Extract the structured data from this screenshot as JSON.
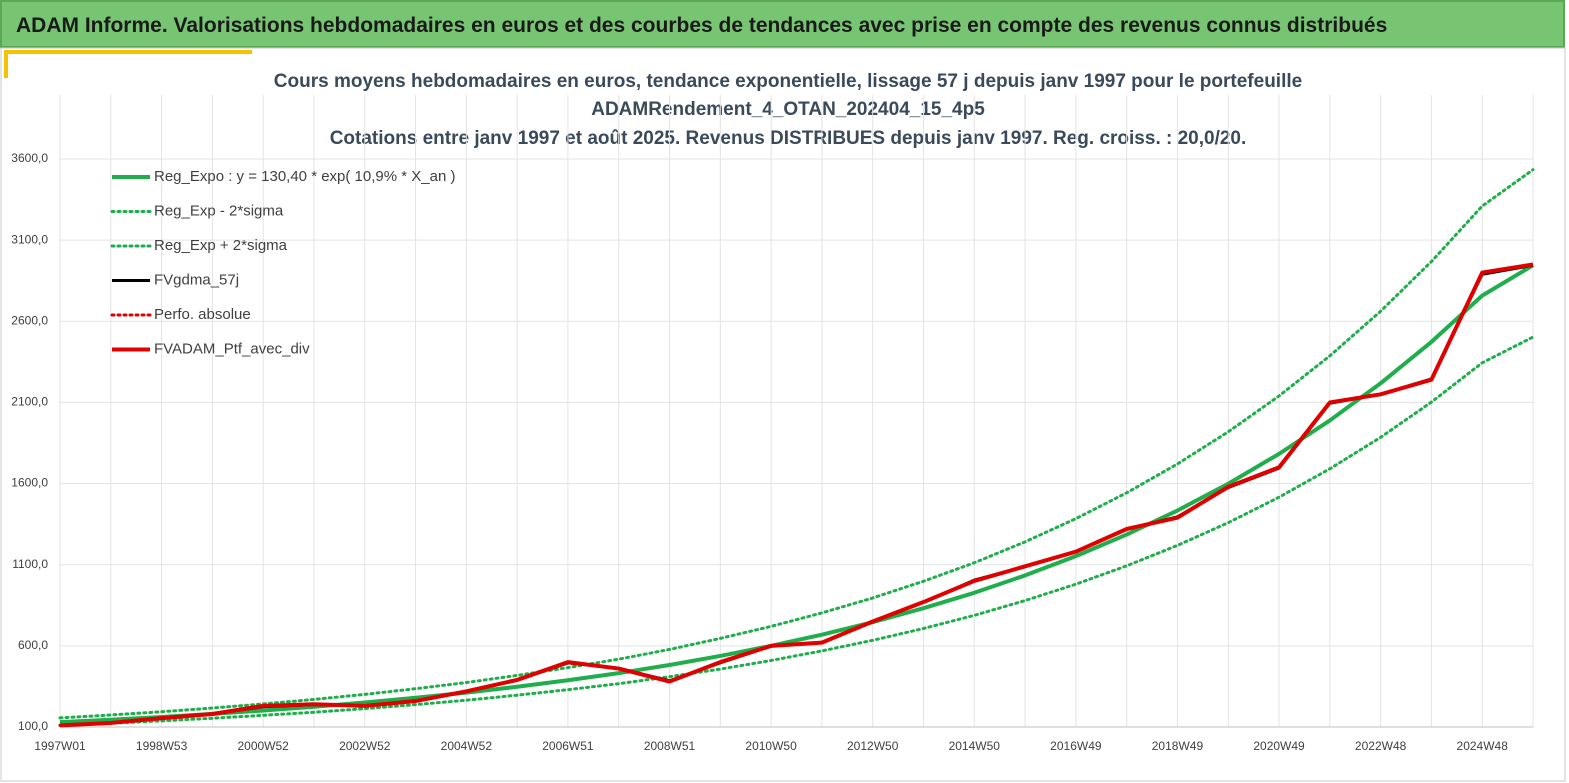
{
  "header": {
    "title": "ADAM Informe. Valorisations hebdomadaires en euros et des courbes de tendances avec prise en compte des revenus connus distribués"
  },
  "chart_data": {
    "type": "line",
    "title": "Cours moyens hebdomadaires  en euros, tendance exponentielle, lissage 57 j depuis janv 1997 pour le portefeuille",
    "subtitle": [
      "ADAMRendement_4_OTAN_202404_15_4p5",
      "Cotations  entre janv 1997 et août 2025. Revenus DISTRIBUES depuis janv 1997. Reg. croiss. : 20,0/20."
    ],
    "categories": [
      "1997W01",
      null,
      "1998W53",
      null,
      "2000W52",
      null,
      "2002W52",
      null,
      "2004W52",
      null,
      "2006W51",
      null,
      "2008W51",
      null,
      "2010W50",
      null,
      "2012W50",
      null,
      "2014W50",
      null,
      "2016W49",
      null,
      "2018W49",
      null,
      "2020W49",
      null,
      "2022W48",
      null,
      "2024W48",
      null
    ],
    "ylim": [
      100,
      3600
    ],
    "yticks": [
      {
        "value": 100,
        "label": "100,0"
      },
      {
        "value": 600,
        "label": "600,0"
      },
      {
        "value": 1100,
        "label": "1100,0"
      },
      {
        "value": 1600,
        "label": "1600,0"
      },
      {
        "value": 2100,
        "label": "2100,0"
      },
      {
        "value": 2600,
        "label": "2600,0"
      },
      {
        "value": 3100,
        "label": "3100,0"
      },
      {
        "value": 3600,
        "label": "3600,0"
      }
    ],
    "grid": true,
    "series": [
      {
        "name": "Reg_Expo : y = 130,40 * exp( 10,9% *  X_an )",
        "color": "#1fae4b",
        "style": "solid",
        "values": [
          130,
          145,
          162,
          181,
          202,
          225,
          251,
          280,
          312,
          348,
          388,
          432,
          482,
          538,
          600,
          669,
          746,
          832,
          927,
          1034,
          1153,
          1286,
          1434,
          1599,
          1783,
          1989,
          2218,
          2473,
          2758,
          2945
        ]
      },
      {
        "name": "Reg_Exp - 2*sigma",
        "color": "#1fae4b",
        "style": "dotted",
        "values": [
          111,
          123,
          138,
          154,
          172,
          191,
          213,
          238,
          265,
          296,
          330,
          367,
          410,
          457,
          510,
          569,
          634,
          707,
          788,
          879,
          980,
          1093,
          1219,
          1359,
          1516,
          1691,
          1885,
          2102,
          2344,
          2503
        ]
      },
      {
        "name": "Reg_Exp + 2*sigma",
        "color": "#1fae4b",
        "style": "dotted",
        "values": [
          156,
          174,
          194,
          217,
          242,
          270,
          301,
          336,
          374,
          418,
          466,
          518,
          578,
          646,
          720,
          803,
          895,
          998,
          1112,
          1241,
          1384,
          1543,
          1721,
          1919,
          2140,
          2387,
          2662,
          2968,
          3310,
          3534
        ]
      },
      {
        "name": "FVgdma_57j",
        "color": "#000000",
        "style": "solid",
        "values": [
          110,
          125,
          152,
          180,
          225,
          238,
          232,
          260,
          318,
          388,
          495,
          462,
          385,
          495,
          598,
          622,
          748,
          868,
          1005,
          1088,
          1182,
          1318,
          1395,
          1575,
          1695,
          2095,
          2150,
          2245,
          2890,
          2945
        ]
      },
      {
        "name": "Perfo. absolue",
        "color": "#e00000",
        "style": "dotted",
        "values": [
          110,
          125,
          155,
          180,
          230,
          240,
          230,
          260,
          320,
          390,
          500,
          460,
          380,
          500,
          600,
          620,
          750,
          870,
          1000,
          1090,
          1180,
          1320,
          1390,
          1580,
          1700,
          2100,
          2150,
          2240,
          2900,
          2950
        ]
      },
      {
        "name": "FVADAM_Ptf_avec_div",
        "color": "#e00000",
        "style": "solid",
        "values": [
          110,
          125,
          155,
          180,
          230,
          240,
          230,
          260,
          320,
          390,
          500,
          460,
          380,
          500,
          600,
          620,
          750,
          870,
          1000,
          1090,
          1180,
          1320,
          1390,
          1580,
          1700,
          2100,
          2150,
          2240,
          2900,
          2950
        ]
      }
    ]
  }
}
